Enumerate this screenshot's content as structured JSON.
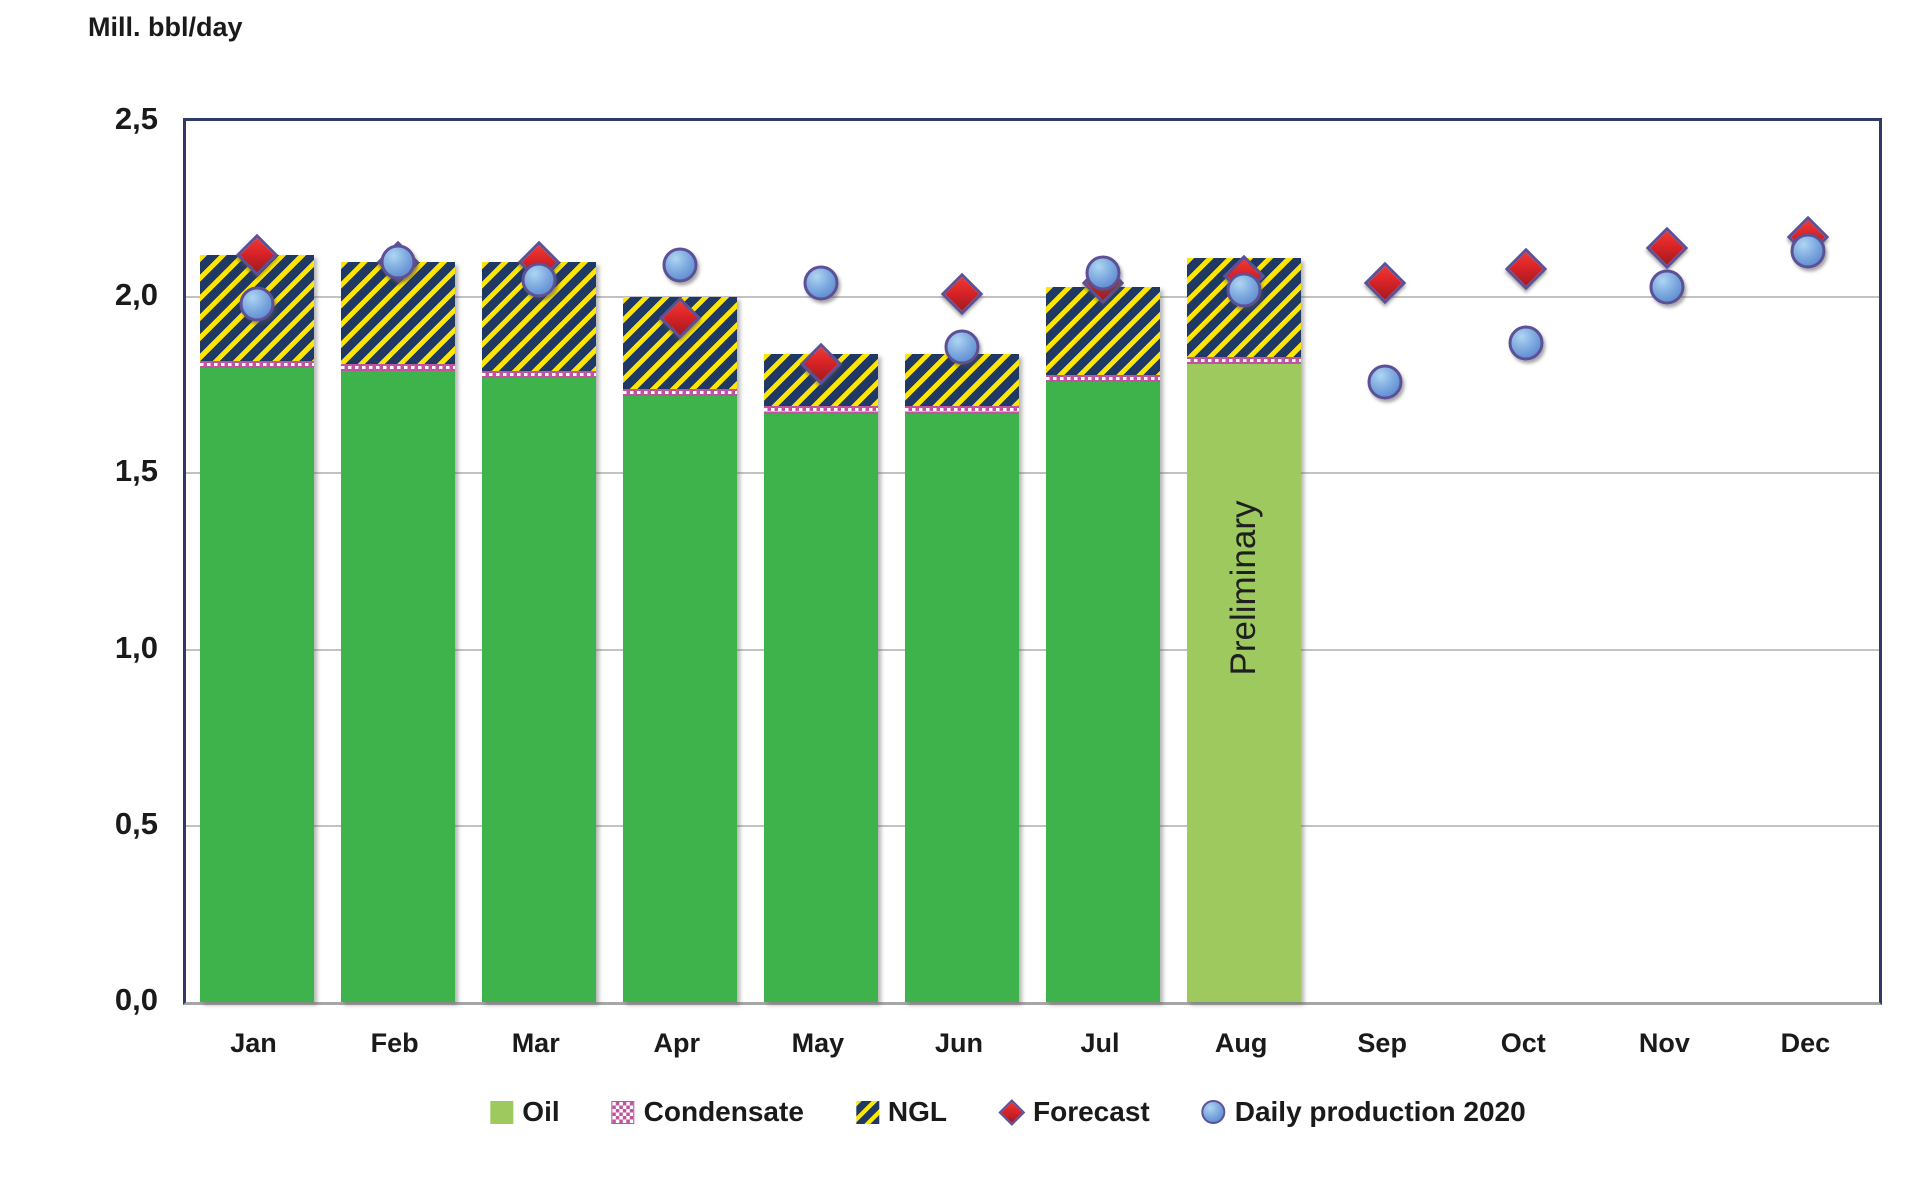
{
  "title": "Mill. bbl/day",
  "colors": {
    "text": "#1a1a1a",
    "border": "#2e3a67",
    "baseline": "#a6a6a6",
    "grid": "#c2c2c2",
    "oil": "#3eb24b",
    "oil_preliminary": "#9dc95e",
    "condensate": "#c0549e",
    "ngl_navy": "#1f3864",
    "ngl_yellow": "#ffe600",
    "forecast_red": "#d92327",
    "forecast_dark": "#a11b20",
    "marker_border": "#5d5096",
    "daily_light": "#aed6f2",
    "daily_blue": "#4e7ec8"
  },
  "chart_data": {
    "type": "bar",
    "subtype": "stacked-bar-with-scatter-overlay",
    "title": "Mill. bbl/day",
    "xlabel": "",
    "ylabel": "Mill. bbl/day",
    "ylim": [
      0,
      2.5
    ],
    "grid": "horizontal",
    "legend_position": "bottom",
    "y_ticks": {
      "values": [
        0,
        0.5,
        1.0,
        1.5,
        2.0,
        2.5
      ],
      "labels": [
        "0,0",
        "0,5",
        "1,0",
        "1,5",
        "2,0",
        "2,5"
      ]
    },
    "categories": [
      "Jan",
      "Feb",
      "Mar",
      "Apr",
      "May",
      "Jun",
      "Jul",
      "Aug",
      "Sep",
      "Oct",
      "Nov",
      "Dec"
    ],
    "series": [
      {
        "name": "Oil",
        "type": "bar-stack",
        "values": [
          1.8,
          1.79,
          1.77,
          1.72,
          1.67,
          1.67,
          1.76,
          1.81,
          null,
          null,
          null,
          null
        ]
      },
      {
        "name": "Condensate",
        "type": "bar-stack",
        "values": [
          0.02,
          0.02,
          0.02,
          0.02,
          0.02,
          0.02,
          0.02,
          0.02,
          null,
          null,
          null,
          null
        ]
      },
      {
        "name": "NGL",
        "type": "bar-stack",
        "values": [
          0.3,
          0.29,
          0.31,
          0.26,
          0.15,
          0.15,
          0.25,
          0.28,
          null,
          null,
          null,
          null
        ]
      },
      {
        "name": "Forecast",
        "type": "scatter-diamond",
        "values": [
          2.12,
          2.1,
          2.1,
          1.94,
          1.81,
          2.01,
          2.04,
          2.06,
          2.04,
          2.08,
          2.14,
          2.17
        ]
      },
      {
        "name": "Daily production 2020",
        "type": "scatter-circle",
        "values": [
          1.98,
          2.1,
          2.05,
          2.09,
          2.04,
          1.86,
          2.07,
          2.02,
          1.76,
          1.87,
          2.03,
          2.13
        ]
      }
    ],
    "bar_totals": [
      2.12,
      2.1,
      2.1,
      2.0,
      1.84,
      1.84,
      2.03,
      2.11,
      null,
      null,
      null,
      null
    ],
    "preliminary_month": "Aug",
    "preliminary_month_index": 7,
    "annotation": {
      "text": "Preliminary"
    }
  },
  "legend": {
    "items": [
      {
        "label": "Oil"
      },
      {
        "label": "Condensate"
      },
      {
        "label": "NGL"
      },
      {
        "label": "Forecast"
      },
      {
        "label": "Daily production 2020"
      }
    ]
  }
}
